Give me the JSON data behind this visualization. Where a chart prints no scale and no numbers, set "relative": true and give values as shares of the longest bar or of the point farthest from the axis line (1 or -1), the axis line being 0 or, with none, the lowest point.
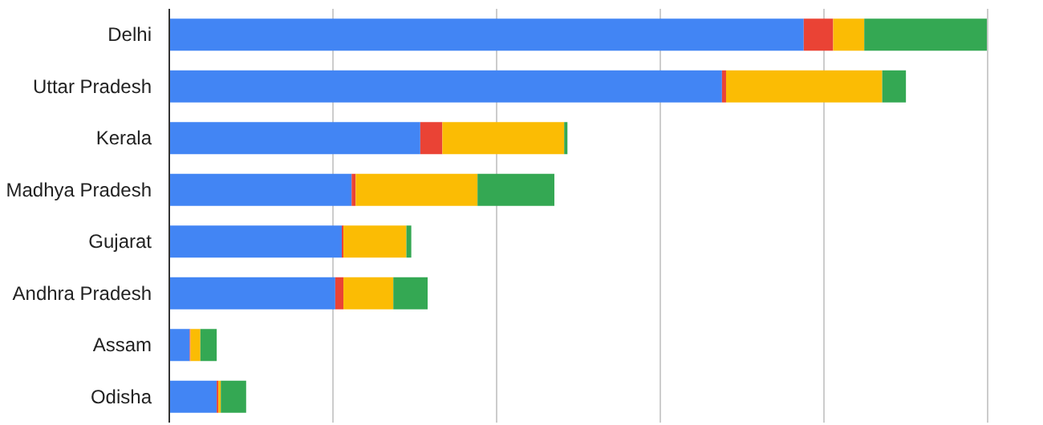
{
  "chart_data": {
    "type": "bar",
    "orientation": "horizontal",
    "stacked": true,
    "relative": true,
    "grid": "x",
    "categories": [
      "Delhi",
      "Uttar Pradesh",
      "Kerala",
      "Madhya Pradesh",
      "Gujarat",
      "Andhra Pradesh",
      "Assam",
      "Odisha"
    ],
    "series": [
      {
        "color": "#4285f4",
        "values": [
          0.776,
          0.676,
          0.307,
          0.223,
          0.211,
          0.203,
          0.025,
          0.058
        ]
      },
      {
        "color": "#ea4335",
        "values": [
          0.036,
          0.005,
          0.027,
          0.005,
          0.002,
          0.01,
          0.001,
          0.002
        ]
      },
      {
        "color": "#fbbc04",
        "values": [
          0.038,
          0.191,
          0.149,
          0.149,
          0.077,
          0.061,
          0.012,
          0.003
        ]
      },
      {
        "color": "#34a853",
        "values": [
          0.15,
          0.029,
          0.004,
          0.094,
          0.006,
          0.042,
          0.02,
          0.031
        ]
      }
    ]
  }
}
